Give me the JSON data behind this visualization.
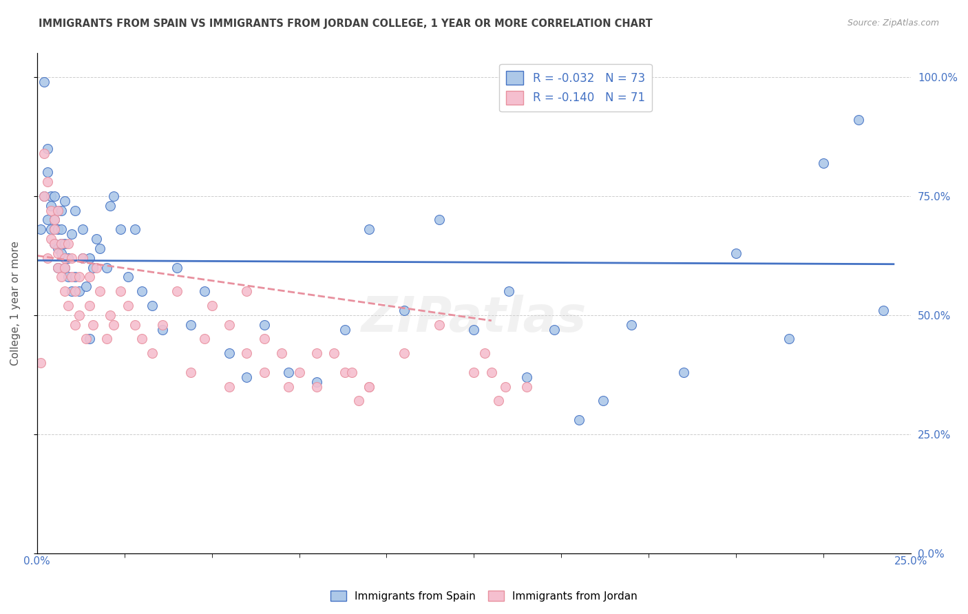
{
  "title": "IMMIGRANTS FROM SPAIN VS IMMIGRANTS FROM JORDAN COLLEGE, 1 YEAR OR MORE CORRELATION CHART",
  "source": "Source: ZipAtlas.com",
  "ylabel": "College, 1 year or more",
  "xlim": [
    0.0,
    0.25
  ],
  "ylim": [
    0.0,
    1.05
  ],
  "spain_R": "-0.032",
  "spain_N": "73",
  "jordan_R": "-0.140",
  "jordan_N": "71",
  "spain_color": "#adc8e8",
  "jordan_color": "#f5bfcf",
  "spain_line_color": "#4472c4",
  "jordan_line_color": "#e8909e",
  "background_color": "#ffffff",
  "grid_color": "#cccccc",
  "right_label_color": "#4472c4",
  "title_color": "#404040",
  "legend_text_color": "#4472c4",
  "spain_line_intercept": 0.615,
  "spain_line_slope": -0.032,
  "spain_line_xend": 0.245,
  "jordan_line_intercept": 0.625,
  "jordan_line_slope": -1.05,
  "jordan_line_xend": 0.13,
  "spain_x": [
    0.001,
    0.002,
    0.002,
    0.003,
    0.003,
    0.003,
    0.004,
    0.004,
    0.004,
    0.005,
    0.005,
    0.005,
    0.005,
    0.006,
    0.006,
    0.006,
    0.006,
    0.007,
    0.007,
    0.007,
    0.007,
    0.008,
    0.008,
    0.008,
    0.009,
    0.009,
    0.01,
    0.01,
    0.011,
    0.011,
    0.012,
    0.013,
    0.013,
    0.014,
    0.015,
    0.015,
    0.016,
    0.017,
    0.018,
    0.02,
    0.021,
    0.022,
    0.024,
    0.026,
    0.028,
    0.03,
    0.033,
    0.036,
    0.04,
    0.044,
    0.048,
    0.055,
    0.06,
    0.065,
    0.072,
    0.08,
    0.088,
    0.095,
    0.105,
    0.115,
    0.125,
    0.14,
    0.155,
    0.17,
    0.185,
    0.2,
    0.215,
    0.225,
    0.235,
    0.242,
    0.135,
    0.148,
    0.162
  ],
  "spain_y": [
    0.68,
    0.99,
    0.75,
    0.85,
    0.8,
    0.7,
    0.75,
    0.68,
    0.73,
    0.65,
    0.7,
    0.75,
    0.68,
    0.64,
    0.68,
    0.72,
    0.6,
    0.65,
    0.72,
    0.68,
    0.63,
    0.6,
    0.65,
    0.74,
    0.58,
    0.62,
    0.55,
    0.67,
    0.58,
    0.72,
    0.55,
    0.62,
    0.68,
    0.56,
    0.62,
    0.45,
    0.6,
    0.66,
    0.64,
    0.6,
    0.73,
    0.75,
    0.68,
    0.58,
    0.68,
    0.55,
    0.52,
    0.47,
    0.6,
    0.48,
    0.55,
    0.42,
    0.37,
    0.48,
    0.38,
    0.36,
    0.47,
    0.68,
    0.51,
    0.7,
    0.47,
    0.37,
    0.28,
    0.48,
    0.38,
    0.63,
    0.45,
    0.82,
    0.91,
    0.51,
    0.55,
    0.47,
    0.32
  ],
  "jordan_x": [
    0.001,
    0.002,
    0.002,
    0.003,
    0.003,
    0.004,
    0.004,
    0.005,
    0.005,
    0.005,
    0.006,
    0.006,
    0.006,
    0.007,
    0.007,
    0.008,
    0.008,
    0.008,
    0.009,
    0.009,
    0.01,
    0.01,
    0.011,
    0.011,
    0.012,
    0.012,
    0.013,
    0.014,
    0.015,
    0.015,
    0.016,
    0.017,
    0.018,
    0.02,
    0.021,
    0.022,
    0.024,
    0.026,
    0.028,
    0.03,
    0.033,
    0.036,
    0.04,
    0.044,
    0.048,
    0.055,
    0.06,
    0.065,
    0.072,
    0.08,
    0.088,
    0.095,
    0.105,
    0.115,
    0.125,
    0.14,
    0.128,
    0.13,
    0.132,
    0.134,
    0.05,
    0.055,
    0.06,
    0.065,
    0.07,
    0.075,
    0.08,
    0.085,
    0.09,
    0.092,
    0.095
  ],
  "jordan_y": [
    0.4,
    0.84,
    0.75,
    0.78,
    0.62,
    0.72,
    0.66,
    0.7,
    0.65,
    0.68,
    0.63,
    0.72,
    0.6,
    0.65,
    0.58,
    0.62,
    0.55,
    0.6,
    0.52,
    0.65,
    0.58,
    0.62,
    0.48,
    0.55,
    0.58,
    0.5,
    0.62,
    0.45,
    0.58,
    0.52,
    0.48,
    0.6,
    0.55,
    0.45,
    0.5,
    0.48,
    0.55,
    0.52,
    0.48,
    0.45,
    0.42,
    0.48,
    0.55,
    0.38,
    0.45,
    0.35,
    0.42,
    0.38,
    0.35,
    0.42,
    0.38,
    0.35,
    0.42,
    0.48,
    0.38,
    0.35,
    0.42,
    0.38,
    0.32,
    0.35,
    0.52,
    0.48,
    0.55,
    0.45,
    0.42,
    0.38,
    0.35,
    0.42,
    0.38,
    0.32,
    0.35
  ]
}
